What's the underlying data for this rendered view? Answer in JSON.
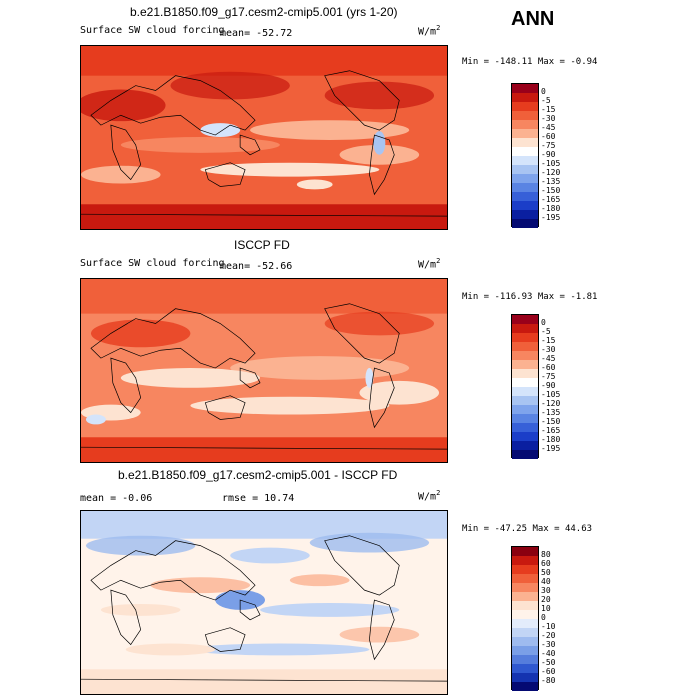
{
  "season": "ANN",
  "units_base": "W/m",
  "units_exp": "2",
  "panels": [
    {
      "title": "b.e21.B1850.f09_g17.cesm2-cmip5.001 (yrs 1-20)",
      "field": "Surface SW cloud forcing",
      "mean_text": "mean= -52.72",
      "minmax": "Min = -148.11 Max =  -0.94"
    },
    {
      "title": "ISCCP FD",
      "field": "Surface SW cloud forcing",
      "mean_text": "mean= -52.66",
      "minmax": "Min = -116.93 Max =  -1.81"
    },
    {
      "title": "b.e21.B1850.f09_g17.cesm2-cmip5.001 - ISCCP FD",
      "mean_text": "mean =  -0.06",
      "rmse_text": "rmse =  10.74",
      "minmax": "Min = -47.25 Max =  44.63"
    }
  ],
  "colorbars": {
    "abs": {
      "levels": [
        "0",
        "-5",
        "-15",
        "-30",
        "-45",
        "-60",
        "-75",
        "-90",
        "-105",
        "-120",
        "-135",
        "-150",
        "-165",
        "-180",
        "-195"
      ],
      "colors": [
        "#99001a",
        "#c8190f",
        "#e63c1e",
        "#f0603a",
        "#f78660",
        "#fbb291",
        "#fde3d1",
        "#ffffff",
        "#d4e4fb",
        "#a8c4f2",
        "#7fa4ec",
        "#5a84e3",
        "#3760d8",
        "#1b3ec8",
        "#0a1fa0",
        "#040a72"
      ]
    },
    "diff": {
      "levels": [
        "80",
        "60",
        "50",
        "40",
        "30",
        "20",
        "10",
        "0",
        "-10",
        "-20",
        "-30",
        "-40",
        "-50",
        "-60",
        "-80"
      ],
      "colors": [
        "#8a0010",
        "#c8190f",
        "#e63c1e",
        "#f0603a",
        "#f78660",
        "#fbb291",
        "#fde3d1",
        "#fff3ea",
        "#e3ecfb",
        "#c2d5f5",
        "#9ebbef",
        "#7a9fe7",
        "#557ddc",
        "#2f58cf",
        "#1433b0",
        "#040a72"
      ]
    }
  }
}
